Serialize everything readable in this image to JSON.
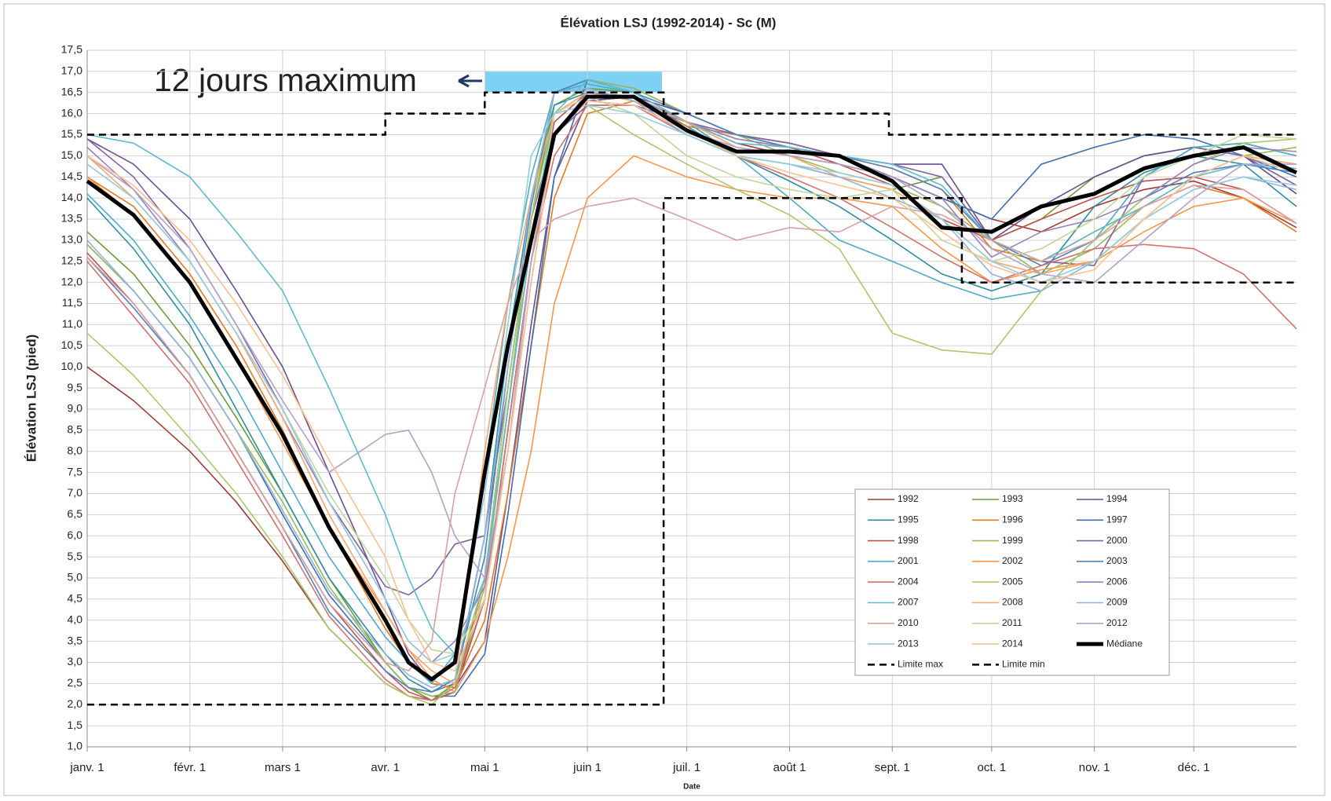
{
  "chart_data": {
    "type": "line",
    "title": "Élévation LSJ (1992-2014) - Sc (M)",
    "xlabel": "Date",
    "ylabel": "Élévation LSJ  (pied)",
    "annotation": "12 jours maximum",
    "grid": true,
    "legend": "lower right",
    "x": [
      1,
      15,
      32,
      46,
      60,
      74,
      91,
      98,
      105,
      112,
      121,
      128,
      135,
      142,
      152,
      166,
      182,
      197,
      213,
      228,
      244,
      259,
      274,
      289,
      305,
      320,
      335,
      350,
      366
    ],
    "xlim": [
      1,
      366
    ],
    "xticks": [
      {
        "value": 1,
        "label": "janv. 1"
      },
      {
        "value": 32,
        "label": "févr. 1"
      },
      {
        "value": 60,
        "label": "mars 1"
      },
      {
        "value": 91,
        "label": "avr. 1"
      },
      {
        "value": 121,
        "label": "mai 1"
      },
      {
        "value": 152,
        "label": "juin 1"
      },
      {
        "value": 182,
        "label": "juil. 1"
      },
      {
        "value": 213,
        "label": "août 1"
      },
      {
        "value": 244,
        "label": "sept. 1"
      },
      {
        "value": 274,
        "label": "oct. 1"
      },
      {
        "value": 305,
        "label": "nov. 1"
      },
      {
        "value": 335,
        "label": "déc. 1"
      }
    ],
    "ylim": [
      1,
      17.5
    ],
    "yticks": [
      {
        "value": 1,
        "label": "1,0"
      },
      {
        "value": 1.5,
        "label": "1,5"
      },
      {
        "value": 2,
        "label": "2,0"
      },
      {
        "value": 2.5,
        "label": "2,5"
      },
      {
        "value": 3,
        "label": "3,0"
      },
      {
        "value": 3.5,
        "label": "3,5"
      },
      {
        "value": 4,
        "label": "4,0"
      },
      {
        "value": 4.5,
        "label": "4,5"
      },
      {
        "value": 5,
        "label": "5,0"
      },
      {
        "value": 5.5,
        "label": "5,5"
      },
      {
        "value": 6,
        "label": "6,0"
      },
      {
        "value": 6.5,
        "label": "6,5"
      },
      {
        "value": 7,
        "label": "7,0"
      },
      {
        "value": 7.5,
        "label": "7,5"
      },
      {
        "value": 8,
        "label": "8,0"
      },
      {
        "value": 8.5,
        "label": "8,5"
      },
      {
        "value": 9,
        "label": "9,0"
      },
      {
        "value": 9.5,
        "label": "9,5"
      },
      {
        "value": 10,
        "label": "10,0"
      },
      {
        "value": 10.5,
        "label": "10,5"
      },
      {
        "value": 11,
        "label": "11,0"
      },
      {
        "value": 11.5,
        "label": "11,5"
      },
      {
        "value": 12,
        "label": "12,0"
      },
      {
        "value": 12.5,
        "label": "12,5"
      },
      {
        "value": 13,
        "label": "13,0"
      },
      {
        "value": 13.5,
        "label": "13,5"
      },
      {
        "value": 14,
        "label": "14,0"
      },
      {
        "value": 14.5,
        "label": "14,5"
      },
      {
        "value": 15,
        "label": "15,0"
      },
      {
        "value": 15.5,
        "label": "15,5"
      },
      {
        "value": 16,
        "label": "16,0"
      },
      {
        "value": 16.5,
        "label": "16,5"
      },
      {
        "value": 17,
        "label": "17,0"
      },
      {
        "value": 17.5,
        "label": "17,5"
      }
    ],
    "series": [
      {
        "name": "1992",
        "color": "#9e3b3b",
        "values": [
          10.0,
          9.2,
          8.0,
          6.8,
          5.4,
          3.8,
          2.5,
          2.2,
          2.1,
          2.3,
          4.5,
          8.5,
          12.5,
          15.5,
          16.3,
          16.4,
          15.8,
          15.3,
          15.0,
          14.8,
          14.5,
          14.0,
          13.5,
          13.2,
          13.8,
          14.2,
          14.4,
          14.0,
          13.3
        ]
      },
      {
        "name": "1993",
        "color": "#6f9a3a",
        "values": [
          13.2,
          12.2,
          10.5,
          8.8,
          7.0,
          5.0,
          3.0,
          2.4,
          2.1,
          2.5,
          5.0,
          9.5,
          13.5,
          16.2,
          16.6,
          16.5,
          15.8,
          15.0,
          14.8,
          14.5,
          14.2,
          14.5,
          13.0,
          13.5,
          14.5,
          15.0,
          15.2,
          15.3,
          15.0
        ]
      },
      {
        "name": "1994",
        "color": "#6a4c93",
        "values": [
          15.4,
          14.8,
          13.5,
          11.8,
          10.0,
          7.5,
          4.5,
          3.2,
          2.5,
          2.4,
          3.5,
          7.0,
          11.0,
          14.5,
          16.3,
          16.4,
          16.0,
          15.5,
          15.3,
          15.0,
          14.8,
          14.8,
          13.0,
          13.8,
          14.5,
          15.0,
          15.2,
          15.0,
          14.1
        ]
      },
      {
        "name": "1995",
        "color": "#2e8ea0",
        "values": [
          14.0,
          12.8,
          11.0,
          9.0,
          7.0,
          5.0,
          3.2,
          2.6,
          2.3,
          2.5,
          6.0,
          10.5,
          14.0,
          16.2,
          16.5,
          16.4,
          15.7,
          15.0,
          14.4,
          13.8,
          13.0,
          12.2,
          11.8,
          12.2,
          13.8,
          14.6,
          15.0,
          14.8,
          13.8
        ]
      },
      {
        "name": "1996",
        "color": "#e07b22",
        "values": [
          14.5,
          13.8,
          12.2,
          10.5,
          8.5,
          6.2,
          3.8,
          3.0,
          2.5,
          2.4,
          4.0,
          7.0,
          10.5,
          14.0,
          16.0,
          16.3,
          15.7,
          15.5,
          15.3,
          15.0,
          14.7,
          14.2,
          12.8,
          12.5,
          13.2,
          13.8,
          14.3,
          14.0,
          13.2
        ]
      },
      {
        "name": "1997",
        "color": "#3d6fb0",
        "values": [
          12.9,
          11.8,
          10.2,
          8.5,
          6.5,
          4.6,
          3.0,
          2.4,
          2.2,
          2.2,
          3.2,
          6.5,
          10.5,
          14.5,
          16.8,
          16.6,
          16.0,
          15.5,
          15.2,
          14.8,
          14.5,
          14.0,
          13.5,
          14.8,
          15.2,
          15.5,
          15.4,
          15.0,
          14.5
        ]
      },
      {
        "name": "1998",
        "color": "#c0504d",
        "values": [
          12.7,
          11.5,
          9.8,
          8.0,
          6.2,
          4.4,
          2.8,
          2.3,
          2.1,
          2.3,
          5.0,
          9.0,
          13.0,
          15.8,
          16.5,
          16.4,
          15.8,
          15.4,
          15.2,
          14.8,
          14.3,
          13.5,
          13.0,
          13.5,
          14.0,
          14.4,
          14.5,
          14.2,
          13.4
        ]
      },
      {
        "name": "1999",
        "color": "#9bbb59",
        "values": [
          12.9,
          11.8,
          10.2,
          8.5,
          6.8,
          4.8,
          3.0,
          2.4,
          2.2,
          2.3,
          4.8,
          9.0,
          13.5,
          16.5,
          16.8,
          16.6,
          16.0,
          15.5,
          15.0,
          14.6,
          14.3,
          13.8,
          13.0,
          12.2,
          12.8,
          13.8,
          14.5,
          15.0,
          15.2
        ]
      },
      {
        "name": "2000",
        "color": "#8064a2",
        "values": [
          15.4,
          14.5,
          12.8,
          11.0,
          9.0,
          6.8,
          4.8,
          4.6,
          5.0,
          5.8,
          6.0,
          9.5,
          13.5,
          15.5,
          16.2,
          16.2,
          15.8,
          15.5,
          15.3,
          15.0,
          14.8,
          14.5,
          13.0,
          12.5,
          12.4,
          14.5,
          15.2,
          15.0,
          14.3
        ]
      },
      {
        "name": "2001",
        "color": "#4bacc6",
        "values": [
          14.1,
          13.0,
          11.2,
          9.5,
          7.5,
          5.5,
          3.6,
          3.0,
          2.5,
          3.2,
          7.5,
          11.5,
          14.5,
          16.5,
          16.7,
          16.5,
          15.8,
          15.0,
          14.0,
          13.0,
          12.5,
          12.0,
          11.6,
          11.8,
          13.0,
          14.5,
          15.2,
          15.3,
          15.0
        ]
      },
      {
        "name": "2002",
        "color": "#f79646",
        "values": [
          14.5,
          13.6,
          12.0,
          10.2,
          8.2,
          6.2,
          4.2,
          3.3,
          2.6,
          2.3,
          3.5,
          5.5,
          8.0,
          11.5,
          14.0,
          15.0,
          14.5,
          14.2,
          14.0,
          14.0,
          13.8,
          12.8,
          12.0,
          12.3,
          12.5,
          13.2,
          13.8,
          14.0,
          13.4
        ]
      },
      {
        "name": "2003",
        "color": "#4f81bd",
        "values": [
          12.6,
          11.4,
          9.8,
          8.0,
          6.2,
          4.2,
          2.8,
          2.4,
          2.3,
          2.6,
          5.5,
          10.0,
          13.8,
          16.5,
          16.8,
          16.5,
          16.0,
          15.5,
          15.2,
          15.0,
          14.7,
          14.2,
          13.0,
          12.4,
          13.0,
          14.0,
          14.6,
          14.8,
          14.6
        ]
      },
      {
        "name": "2004",
        "color": "#d0726f",
        "values": [
          12.5,
          11.2,
          9.6,
          7.8,
          6.0,
          4.1,
          2.6,
          2.2,
          2.1,
          2.4,
          4.5,
          8.5,
          12.5,
          15.0,
          16.2,
          16.2,
          15.5,
          15.0,
          14.5,
          14.0,
          13.3,
          12.6,
          12.0,
          12.4,
          12.8,
          12.9,
          12.8,
          12.2,
          10.9
        ]
      },
      {
        "name": "2005",
        "color": "#a9c96c",
        "values": [
          10.8,
          9.8,
          8.3,
          7.0,
          5.5,
          3.8,
          2.5,
          2.2,
          2.0,
          2.5,
          5.0,
          9.5,
          13.5,
          16.0,
          16.2,
          15.5,
          14.8,
          14.2,
          13.6,
          12.8,
          10.8,
          10.4,
          10.3,
          11.8,
          13.0,
          14.0,
          14.8,
          15.3,
          15.4
        ]
      },
      {
        "name": "2006",
        "color": "#9a80b8",
        "values": [
          15.2,
          14.2,
          12.5,
          10.8,
          8.8,
          6.8,
          4.5,
          3.5,
          3.0,
          3.5,
          4.8,
          8.0,
          12.0,
          15.5,
          16.5,
          16.4,
          15.8,
          15.4,
          15.2,
          15.0,
          14.5,
          14.0,
          12.6,
          13.2,
          13.5,
          14.0,
          14.8,
          15.2,
          15.1
        ]
      },
      {
        "name": "2007",
        "color": "#5dbbd0",
        "values": [
          15.5,
          15.3,
          14.5,
          13.2,
          11.8,
          9.5,
          6.5,
          5.0,
          3.8,
          3.2,
          5.0,
          9.0,
          13.0,
          16.0,
          16.8,
          16.5,
          15.8,
          15.3,
          15.2,
          15.0,
          14.8,
          14.3,
          13.0,
          12.5,
          13.2,
          13.8,
          14.5,
          14.8,
          14.7
        ]
      },
      {
        "name": "2008",
        "color": "#f8a66a",
        "values": [
          15.0,
          14.0,
          12.5,
          10.8,
          8.8,
          6.5,
          4.2,
          3.3,
          2.8,
          2.5,
          8.0,
          11.5,
          14.0,
          16.0,
          16.5,
          16.3,
          15.8,
          15.2,
          15.0,
          14.5,
          14.2,
          13.5,
          12.5,
          12.2,
          12.5,
          13.5,
          14.5,
          15.0,
          14.8
        ]
      },
      {
        "name": "2009",
        "color": "#95b3d7",
        "values": [
          13.0,
          11.8,
          10.2,
          8.5,
          6.6,
          4.7,
          3.2,
          2.7,
          2.4,
          2.6,
          6.0,
          10.0,
          14.0,
          16.5,
          16.6,
          16.3,
          15.5,
          15.0,
          14.8,
          14.5,
          14.0,
          13.5,
          12.2,
          11.8,
          12.5,
          13.5,
          14.2,
          14.5,
          14.2
        ]
      },
      {
        "name": "2010",
        "color": "#d9a0a0",
        "values": [
          12.6,
          11.5,
          9.8,
          8.0,
          6.2,
          4.4,
          3.0,
          2.8,
          3.5,
          7.0,
          9.5,
          11.5,
          13.0,
          13.5,
          13.8,
          14.0,
          13.5,
          13.0,
          13.3,
          13.2,
          13.8,
          13.6,
          13.0,
          12.5,
          13.0,
          13.8,
          14.3,
          14.2,
          13.4
        ]
      },
      {
        "name": "2011",
        "color": "#c3d69b",
        "values": [
          14.8,
          14.0,
          12.5,
          10.8,
          9.0,
          7.0,
          5.0,
          4.0,
          3.3,
          3.2,
          4.5,
          8.0,
          12.5,
          16.0,
          16.4,
          16.0,
          15.0,
          14.5,
          14.2,
          14.0,
          14.2,
          13.0,
          12.5,
          12.8,
          13.5,
          14.5,
          15.0,
          15.5,
          15.4
        ]
      },
      {
        "name": "2012",
        "color": "#b3a2c7",
        "values": [
          15.0,
          14.2,
          12.8,
          11.0,
          9.2,
          7.5,
          8.4,
          8.5,
          7.5,
          6.0,
          5.0,
          8.0,
          12.5,
          15.5,
          16.3,
          16.2,
          15.6,
          15.2,
          15.0,
          14.8,
          14.5,
          13.8,
          12.8,
          12.2,
          12.0,
          13.0,
          14.0,
          14.8,
          14.8
        ]
      },
      {
        "name": "2013",
        "color": "#93cddd",
        "values": [
          14.8,
          14.0,
          12.5,
          10.8,
          9.0,
          6.8,
          4.5,
          3.5,
          3.0,
          3.2,
          7.0,
          11.0,
          15.0,
          16.0,
          16.2,
          16.0,
          15.5,
          15.0,
          14.8,
          14.6,
          14.3,
          13.5,
          12.5,
          12.0,
          12.5,
          13.5,
          14.2,
          14.5,
          14.3
        ]
      },
      {
        "name": "2014",
        "color": "#fac090",
        "values": [
          15.0,
          14.3,
          13.0,
          11.5,
          9.8,
          7.8,
          5.5,
          4.0,
          3.0,
          2.8,
          4.5,
          8.0,
          12.0,
          15.5,
          16.3,
          16.2,
          15.6,
          15.0,
          14.6,
          14.3,
          14.0,
          13.2,
          12.4,
          12.0,
          12.3,
          13.5,
          14.5,
          15.0,
          14.6
        ]
      },
      {
        "name": "Médiane",
        "color": "#000000",
        "values": [
          14.4,
          13.6,
          12.0,
          10.2,
          8.4,
          6.2,
          4.0,
          3.0,
          2.6,
          3.0,
          7.5,
          10.5,
          13.0,
          15.5,
          16.4,
          16.4,
          15.6,
          15.1,
          15.1,
          15.0,
          14.4,
          13.3,
          13.2,
          13.8,
          14.1,
          14.7,
          15.0,
          15.2,
          14.6
        ]
      },
      {
        "name": "Limite max",
        "color": "#000000",
        "dashed": true,
        "x": [
          1,
          91,
          91,
          121,
          121,
          175,
          175,
          243,
          243,
          366
        ],
        "values": [
          15.5,
          15.5,
          16.0,
          16.0,
          16.5,
          16.5,
          16.0,
          16.0,
          15.5,
          15.5
        ]
      },
      {
        "name": "Limite min",
        "color": "#000000",
        "dashed": true,
        "x": [
          1,
          175,
          175,
          265,
          265,
          366
        ],
        "values": [
          2.0,
          2.0,
          14.0,
          14.0,
          12.0,
          12.0
        ]
      }
    ]
  }
}
